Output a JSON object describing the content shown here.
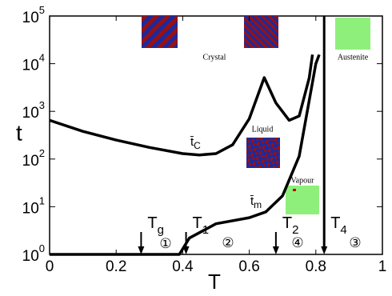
{
  "chart_data": {
    "type": "line",
    "x_label": "T",
    "y_label": "t",
    "xlim": [
      0,
      1
    ],
    "ylim": [
      1,
      100000
    ],
    "log_y": true,
    "xticks": [
      0,
      0.2,
      0.4,
      0.6,
      0.8,
      1
    ],
    "yticks": [
      {
        "value": 1,
        "label": "10",
        "exponent": "0"
      },
      {
        "value": 10,
        "label": "10",
        "exponent": "1"
      },
      {
        "value": 100,
        "label": "10",
        "exponent": "2"
      },
      {
        "value": 1000,
        "label": "10",
        "exponent": "3"
      },
      {
        "value": 10000,
        "label": "10",
        "exponent": "4"
      },
      {
        "value": 100000,
        "label": "10",
        "exponent": "5"
      }
    ],
    "series": [
      {
        "name": "t̄",
        "sub": "C",
        "color": "#000000",
        "x": [
          0,
          0.1,
          0.2,
          0.3,
          0.4,
          0.45,
          0.5,
          0.55,
          0.6,
          0.645,
          0.68,
          0.72,
          0.75,
          0.78,
          0.79
        ],
        "values": [
          650,
          380,
          250,
          175,
          130,
          122,
          130,
          200,
          700,
          5100,
          1500,
          650,
          800,
          5000,
          15500
        ]
      },
      {
        "name": "t̄",
        "sub": "m",
        "color": "#000000",
        "x": [
          0,
          0.39,
          0.42,
          0.5,
          0.6,
          0.65,
          0.7,
          0.75,
          0.8,
          0.81
        ],
        "values": [
          1,
          1,
          2.2,
          4.4,
          5.9,
          7.8,
          17,
          115,
          10000,
          15500
        ]
      }
    ],
    "markers": [
      {
        "text": "T",
        "sub": "g",
        "x": 0.275
      },
      {
        "text": "T",
        "sub": "1",
        "x": 0.41
      },
      {
        "text": "T",
        "sub": "2",
        "x": 0.68
      },
      {
        "text": "T",
        "sub": "4",
        "x": 0.825
      }
    ],
    "regions": [
      "①",
      "②",
      "④",
      "③"
    ],
    "phase_labels": [
      "Crystal",
      "Austenite",
      "Liquid",
      "Vapour"
    ]
  }
}
